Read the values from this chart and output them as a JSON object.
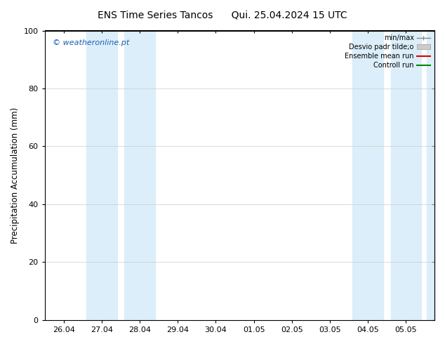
{
  "title_left": "ENS Time Series Tancos",
  "title_right": "Qui. 25.04.2024 15 UTC",
  "ylabel": "Precipitation Accumulation (mm)",
  "watermark": "© weatheronline.pt",
  "watermark_color": "#1a5fb4",
  "ylim": [
    0,
    100
  ],
  "yticks": [
    0,
    20,
    40,
    60,
    80,
    100
  ],
  "x_labels": [
    "26.04",
    "27.04",
    "28.04",
    "29.04",
    "30.04",
    "01.05",
    "02.05",
    "03.05",
    "04.05",
    "05.05"
  ],
  "x_values": [
    0,
    1,
    2,
    3,
    4,
    5,
    6,
    7,
    8,
    9
  ],
  "bg_color": "#ffffff",
  "plot_bg_color": "#ffffff",
  "band_color": "#dceef9",
  "legend_labels": [
    "min/max",
    "Desvio padr tilde;o",
    "Ensemble mean run",
    "Controll run"
  ],
  "legend_colors_line": [
    "#aaaaaa",
    "#bbbbbb",
    "#dd0000",
    "#008800"
  ],
  "title_fontsize": 10,
  "tick_fontsize": 8,
  "ylabel_fontsize": 8.5
}
